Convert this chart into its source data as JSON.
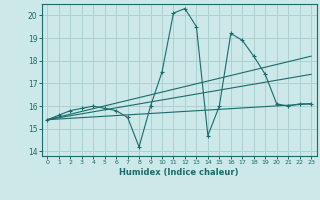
{
  "xlabel": "Humidex (Indice chaleur)",
  "xlim": [
    -0.5,
    23.5
  ],
  "ylim": [
    13.8,
    20.5
  ],
  "yticks": [
    14,
    15,
    16,
    17,
    18,
    19,
    20
  ],
  "xticks": [
    0,
    1,
    2,
    3,
    4,
    5,
    6,
    7,
    8,
    9,
    10,
    11,
    12,
    13,
    14,
    15,
    16,
    17,
    18,
    19,
    20,
    21,
    22,
    23
  ],
  "bg_color": "#cce8e8",
  "grid_color": "#aed0d0",
  "line_color": "#1a6b6b",
  "main_line": {
    "x": [
      0,
      1,
      2,
      3,
      4,
      5,
      6,
      7,
      8,
      9,
      10,
      11,
      12,
      13,
      14,
      15,
      16,
      17,
      18,
      19,
      20,
      21,
      22,
      23
    ],
    "y": [
      15.4,
      15.6,
      15.8,
      15.9,
      16.0,
      15.9,
      15.8,
      15.5,
      14.2,
      16.0,
      17.5,
      20.1,
      20.3,
      19.5,
      14.7,
      16.0,
      19.2,
      18.9,
      18.2,
      17.4,
      16.1,
      16.0,
      16.1,
      16.1
    ]
  },
  "trend_lines": [
    {
      "x": [
        0,
        23
      ],
      "y": [
        15.4,
        16.1
      ]
    },
    {
      "x": [
        0,
        23
      ],
      "y": [
        15.4,
        18.2
      ]
    },
    {
      "x": [
        0,
        23
      ],
      "y": [
        15.4,
        17.4
      ]
    }
  ]
}
